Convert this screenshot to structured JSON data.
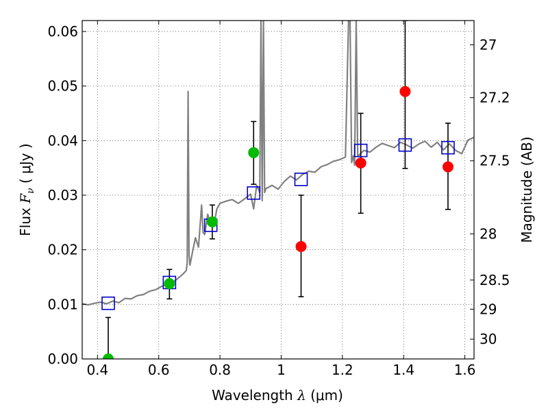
{
  "chart_data": {
    "type": "scatter",
    "xlabel": "Wavelength",
    "xlabel_symbol": "λ",
    "xlabel_unit": "(μm)",
    "ylabel": "Flux",
    "ylabel_symbol": "F",
    "ylabel_subscript": "ν",
    "ylabel_unit": "( μJy )",
    "y2label": "Magnitude (AB)",
    "xlim": [
      0.35,
      1.63
    ],
    "ylim": [
      0.0,
      0.062
    ],
    "grid": true,
    "x_ticks": [
      0.4,
      0.6,
      0.8,
      1.0,
      1.2,
      1.4,
      1.6
    ],
    "x_tick_labels": [
      "0.4",
      "0.6",
      "0.8",
      "1",
      "1.2",
      "1.4",
      "1.6"
    ],
    "y_ticks": [
      0.0,
      0.01,
      0.02,
      0.03,
      0.04,
      0.05,
      0.06
    ],
    "y_tick_labels": [
      "0.00",
      "0.01",
      "0.02",
      "0.03",
      "0.04",
      "0.05",
      "0.06"
    ],
    "y2_ticks": [
      27,
      27.2,
      27.5,
      28,
      28.5,
      29,
      30
    ],
    "y2_tick_labels": [
      "27",
      "27.2",
      "27.5",
      "28",
      "28.5",
      "29",
      "30"
    ],
    "colors": {
      "spectrum": "#808080",
      "observed": "#ff0000",
      "observed_secondary": "#00bb00",
      "model": "#0000cc",
      "errorbar": "#000000",
      "grid": "#555555"
    },
    "series": [
      {
        "kind": "model-spectrum",
        "x": [
          0.35,
          0.37,
          0.39,
          0.41,
          0.43,
          0.45,
          0.47,
          0.49,
          0.51,
          0.53,
          0.55,
          0.57,
          0.59,
          0.61,
          0.63,
          0.65,
          0.67,
          0.68,
          0.69,
          0.693,
          0.696,
          0.699,
          0.702,
          0.71,
          0.72,
          0.73,
          0.74,
          0.745,
          0.75,
          0.76,
          0.77,
          0.78,
          0.79,
          0.8,
          0.82,
          0.84,
          0.86,
          0.88,
          0.9,
          0.91,
          0.92,
          0.93,
          0.934,
          0.938,
          0.942,
          0.946,
          0.95,
          0.97,
          0.99,
          1.01,
          1.03,
          1.05,
          1.07,
          1.09,
          1.11,
          1.13,
          1.15,
          1.17,
          1.19,
          1.21,
          1.22,
          1.225,
          1.23,
          1.235,
          1.24,
          1.245,
          1.25,
          1.27,
          1.29,
          1.31,
          1.33,
          1.35,
          1.37,
          1.39,
          1.41,
          1.43,
          1.45,
          1.47,
          1.49,
          1.51,
          1.53,
          1.55,
          1.57,
          1.59,
          1.61,
          1.63
        ],
        "y": [
          0.0101,
          0.0099,
          0.0102,
          0.0104,
          0.0101,
          0.0106,
          0.0103,
          0.0111,
          0.011,
          0.0116,
          0.0118,
          0.0124,
          0.0127,
          0.0133,
          0.0138,
          0.0142,
          0.0151,
          0.0156,
          0.0162,
          0.0175,
          0.049,
          0.019,
          0.0172,
          0.0195,
          0.0222,
          0.0205,
          0.0282,
          0.0232,
          0.0228,
          0.0265,
          0.0248,
          0.0244,
          0.0275,
          0.0285,
          0.0289,
          0.0292,
          0.0285,
          0.0293,
          0.0302,
          0.0275,
          0.0318,
          0.0305,
          0.062,
          0.029,
          0.062,
          0.0305,
          0.0312,
          0.0318,
          0.0311,
          0.0325,
          0.0335,
          0.0328,
          0.0338,
          0.0344,
          0.0342,
          0.0352,
          0.0356,
          0.0362,
          0.0365,
          0.037,
          0.062,
          0.062,
          0.036,
          0.0372,
          0.0355,
          0.062,
          0.0371,
          0.0382,
          0.0379,
          0.0388,
          0.0395,
          0.0391,
          0.0387,
          0.0397,
          0.0392,
          0.0386,
          0.0394,
          0.0399,
          0.0388,
          0.0397,
          0.0383,
          0.0394,
          0.0382,
          0.0376,
          0.0401,
          0.0406
        ]
      },
      {
        "kind": "observed-red",
        "x": [
          1.065,
          1.26,
          1.405,
          1.545
        ],
        "y": [
          0.0206,
          0.0359,
          0.049,
          0.0352
        ],
        "err_low": [
          0.0114,
          0.0267,
          0.0349,
          0.0274
        ],
        "err_high": [
          0.03,
          0.045,
          0.062,
          0.0432
        ]
      },
      {
        "kind": "observed-green",
        "x": [
          0.435,
          0.635,
          0.775,
          0.91
        ],
        "y": [
          0.0,
          0.0138,
          0.0251,
          0.0378
        ],
        "err_low": [
          0.0,
          0.011,
          0.022,
          0.032
        ],
        "err_high": [
          0.0076,
          0.0164,
          0.0282,
          0.0435
        ]
      },
      {
        "kind": "model-photometry",
        "x": [
          0.435,
          0.635,
          0.77,
          0.91,
          1.065,
          1.26,
          1.405,
          1.545
        ],
        "y": [
          0.0102,
          0.014,
          0.0245,
          0.0304,
          0.0329,
          0.0382,
          0.0392,
          0.0387
        ]
      }
    ]
  }
}
